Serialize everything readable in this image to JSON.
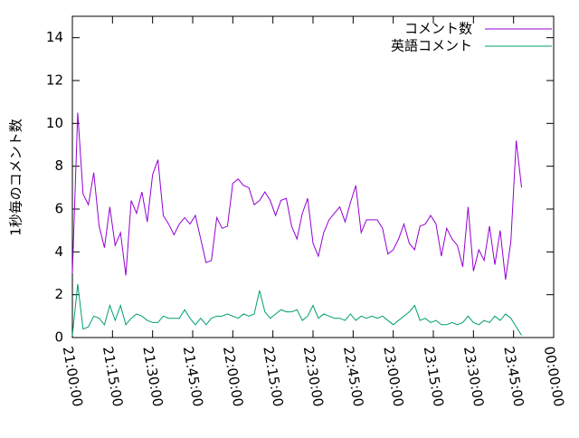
{
  "chart_data": {
    "type": "line",
    "ylabel": "1秒毎のコメント数",
    "x": [
      "21:00:00",
      "21:02:00",
      "21:04:00",
      "21:06:00",
      "21:08:00",
      "21:10:00",
      "21:12:00",
      "21:14:00",
      "21:16:00",
      "21:18:00",
      "21:20:00",
      "21:22:00",
      "21:24:00",
      "21:26:00",
      "21:28:00",
      "21:30:00",
      "21:32:00",
      "21:34:00",
      "21:36:00",
      "21:38:00",
      "21:40:00",
      "21:42:00",
      "21:44:00",
      "21:46:00",
      "21:48:00",
      "21:50:00",
      "21:52:00",
      "21:54:00",
      "21:56:00",
      "21:58:00",
      "22:00:00",
      "22:02:00",
      "22:04:00",
      "22:06:00",
      "22:08:00",
      "22:10:00",
      "22:12:00",
      "22:14:00",
      "22:16:00",
      "22:18:00",
      "22:20:00",
      "22:22:00",
      "22:24:00",
      "22:26:00",
      "22:28:00",
      "22:30:00",
      "22:32:00",
      "22:34:00",
      "22:36:00",
      "22:38:00",
      "22:40:00",
      "22:42:00",
      "22:44:00",
      "22:46:00",
      "22:48:00",
      "22:50:00",
      "22:52:00",
      "22:54:00",
      "22:56:00",
      "22:58:00",
      "23:00:00",
      "23:02:00",
      "23:04:00",
      "23:06:00",
      "23:08:00",
      "23:10:00",
      "23:12:00",
      "23:14:00",
      "23:16:00",
      "23:18:00",
      "23:20:00",
      "23:22:00",
      "23:24:00",
      "23:26:00",
      "23:28:00",
      "23:30:00",
      "23:32:00",
      "23:34:00",
      "23:36:00",
      "23:38:00",
      "23:40:00",
      "23:42:00",
      "23:44:00",
      "23:46:00",
      "23:48:00"
    ],
    "series": [
      {
        "name": "コメント数",
        "color": "#9400d3",
        "values": [
          3.0,
          10.5,
          6.7,
          6.2,
          7.7,
          5.2,
          4.2,
          6.1,
          4.3,
          4.9,
          2.9,
          6.4,
          5.8,
          6.8,
          5.4,
          7.6,
          8.3,
          5.7,
          5.3,
          4.8,
          5.3,
          5.6,
          5.3,
          5.7,
          4.6,
          3.5,
          3.6,
          5.6,
          5.1,
          5.2,
          7.2,
          7.4,
          7.1,
          7.0,
          6.2,
          6.4,
          6.8,
          6.4,
          5.7,
          6.4,
          6.5,
          5.2,
          4.6,
          5.8,
          6.5,
          4.4,
          3.8,
          4.9,
          5.5,
          5.8,
          6.1,
          5.4,
          6.3,
          7.1,
          4.9,
          5.5,
          5.5,
          5.5,
          5.1,
          3.9,
          4.1,
          4.6,
          5.3,
          4.4,
          4.1,
          5.2,
          5.3,
          5.7,
          5.3,
          3.8,
          5.1,
          4.6,
          4.3,
          3.3,
          6.1,
          3.1,
          4.1,
          3.6,
          5.2,
          3.4,
          5.0,
          2.7,
          4.5,
          9.2,
          7.0
        ]
      },
      {
        "name": "英語コメント",
        "color": "#009e73",
        "values": [
          0.1,
          2.5,
          0.4,
          0.5,
          1.0,
          0.9,
          0.6,
          1.5,
          0.8,
          1.5,
          0.6,
          0.9,
          1.1,
          1.0,
          0.8,
          0.7,
          0.7,
          1.0,
          0.9,
          0.9,
          0.9,
          1.3,
          0.9,
          0.6,
          0.9,
          0.6,
          0.9,
          1.0,
          1.0,
          1.1,
          1.0,
          0.9,
          1.1,
          1.0,
          1.1,
          2.2,
          1.2,
          0.9,
          1.1,
          1.3,
          1.2,
          1.2,
          1.3,
          0.8,
          1.0,
          1.5,
          0.9,
          1.1,
          1.0,
          0.9,
          0.9,
          0.8,
          1.1,
          0.8,
          1.0,
          0.9,
          1.0,
          0.9,
          1.0,
          0.8,
          0.6,
          0.8,
          1.0,
          1.2,
          1.5,
          0.8,
          0.9,
          0.7,
          0.8,
          0.6,
          0.6,
          0.7,
          0.6,
          0.7,
          1.0,
          0.7,
          0.6,
          0.8,
          0.7,
          1.0,
          0.8,
          1.1,
          0.9,
          0.5,
          0.1
        ]
      }
    ],
    "xlim": [
      "21:00:00",
      "00:00:00"
    ],
    "xticks": [
      "21:00:00",
      "21:15:00",
      "21:30:00",
      "21:45:00",
      "22:00:00",
      "22:15:00",
      "22:30:00",
      "22:45:00",
      "23:00:00",
      "23:15:00",
      "23:30:00",
      "23:45:00",
      "00:00:00"
    ],
    "ylim": [
      0,
      15
    ],
    "yticks": [
      0,
      2,
      4,
      6,
      8,
      10,
      12,
      14
    ],
    "legend": "top-right"
  }
}
